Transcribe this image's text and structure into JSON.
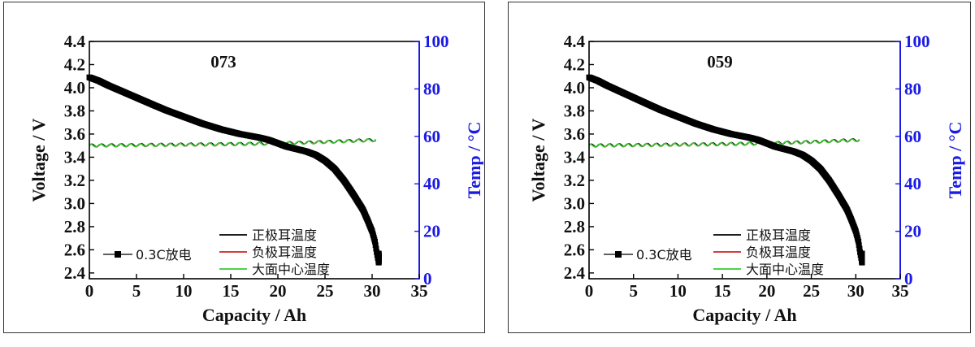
{
  "chart_data": [
    {
      "type": "line",
      "title": "073",
      "xlabel": "Capacity / Ah",
      "ylabel": "Voltage / V",
      "y2label": "Temp / °C",
      "xlim": [
        0,
        35
      ],
      "ylim": [
        2.35,
        4.4
      ],
      "y2lim": [
        0,
        100
      ],
      "xticks": [
        "0",
        "5",
        "10",
        "15",
        "20",
        "25",
        "30",
        "35"
      ],
      "yticks": [
        "2.4",
        "2.6",
        "2.8",
        "3.0",
        "3.2",
        "3.4",
        "3.6",
        "3.8",
        "4.0",
        "4.2",
        "4.4"
      ],
      "y2ticks": [
        "0",
        "20",
        "40",
        "60",
        "80",
        "100"
      ],
      "legend_left": "0.3C放电",
      "legend_right": [
        "正极耳温度",
        "负极耳温度",
        "大面中心温度"
      ],
      "colors": {
        "voltage": "#000000",
        "pos_tab": "#000000",
        "neg_tab": "#cc2222",
        "center": "#33cc33",
        "right_axis": "#1a1ae6"
      },
      "series": [
        {
          "name": "0.3C放电",
          "axis": "left",
          "x": [
            0,
            1,
            2,
            4,
            6,
            8,
            10,
            12,
            14,
            16,
            18,
            19,
            20,
            21,
            22,
            23,
            24,
            25,
            26,
            27,
            28,
            29,
            29.5,
            30,
            30.3,
            30.5,
            30.7
          ],
          "y": [
            4.09,
            4.06,
            4.02,
            3.95,
            3.88,
            3.81,
            3.75,
            3.69,
            3.64,
            3.6,
            3.57,
            3.55,
            3.52,
            3.49,
            3.47,
            3.45,
            3.42,
            3.37,
            3.3,
            3.2,
            3.08,
            2.95,
            2.86,
            2.76,
            2.67,
            2.57,
            2.49
          ]
        },
        {
          "name": "正极耳温度",
          "axis": "right",
          "x": [
            0,
            5,
            10,
            15,
            20,
            25,
            30.5
          ],
          "y": [
            56.2,
            56.4,
            56.6,
            56.8,
            57.1,
            57.7,
            58.6
          ]
        },
        {
          "name": "负极耳温度",
          "axis": "right",
          "x": [
            0,
            5,
            10,
            15,
            20,
            25,
            30.5
          ],
          "y": [
            56.0,
            56.2,
            56.4,
            56.6,
            57.0,
            57.6,
            58.4
          ]
        },
        {
          "name": "大面中心温度",
          "axis": "right",
          "x": [
            0,
            5,
            10,
            15,
            20,
            25,
            30.5
          ],
          "y": [
            56.1,
            56.3,
            56.5,
            56.7,
            57.0,
            57.6,
            58.5
          ]
        }
      ]
    },
    {
      "type": "line",
      "title": "059",
      "xlabel": "Capacity / Ah",
      "ylabel": "Voltage / V",
      "y2label": "Temp / °C",
      "xlim": [
        0,
        35
      ],
      "ylim": [
        2.35,
        4.4
      ],
      "y2lim": [
        0,
        100
      ],
      "xticks": [
        "0",
        "5",
        "10",
        "15",
        "20",
        "25",
        "30",
        "35"
      ],
      "yticks": [
        "2.4",
        "2.6",
        "2.8",
        "3.0",
        "3.2",
        "3.4",
        "3.6",
        "3.8",
        "4.0",
        "4.2",
        "4.4"
      ],
      "y2ticks": [
        "0",
        "20",
        "40",
        "60",
        "80",
        "100"
      ],
      "legend_left": "0.3C放电",
      "legend_right": [
        "正极耳温度",
        "负极耳温度",
        "大面中心温度"
      ],
      "colors": {
        "voltage": "#000000",
        "pos_tab": "#000000",
        "neg_tab": "#cc2222",
        "center": "#33cc33",
        "right_axis": "#1a1ae6"
      },
      "series": [
        {
          "name": "0.3C放电",
          "axis": "left",
          "x": [
            0,
            1,
            2,
            4,
            6,
            8,
            10,
            12,
            14,
            16,
            18,
            19,
            20,
            21,
            22,
            23,
            24,
            25,
            26,
            27,
            28,
            29,
            29.5,
            30,
            30.3,
            30.5,
            30.7
          ],
          "y": [
            4.09,
            4.06,
            4.02,
            3.95,
            3.88,
            3.81,
            3.75,
            3.69,
            3.64,
            3.6,
            3.57,
            3.55,
            3.52,
            3.49,
            3.47,
            3.45,
            3.42,
            3.37,
            3.3,
            3.2,
            3.08,
            2.95,
            2.86,
            2.76,
            2.67,
            2.57,
            2.49
          ]
        },
        {
          "name": "正极耳温度",
          "axis": "right",
          "x": [
            0,
            5,
            10,
            15,
            20,
            25,
            30.5
          ],
          "y": [
            56.2,
            56.4,
            56.6,
            56.8,
            57.1,
            57.7,
            58.6
          ]
        },
        {
          "name": "负极耳温度",
          "axis": "right",
          "x": [
            0,
            5,
            10,
            15,
            20,
            25,
            30.5
          ],
          "y": [
            56.0,
            56.2,
            56.4,
            56.6,
            57.0,
            57.6,
            58.4
          ]
        },
        {
          "name": "大面中心温度",
          "axis": "right",
          "x": [
            0,
            5,
            10,
            15,
            20,
            25,
            30.5
          ],
          "y": [
            56.1,
            56.3,
            56.5,
            56.7,
            57.0,
            57.6,
            58.5
          ]
        }
      ]
    }
  ]
}
